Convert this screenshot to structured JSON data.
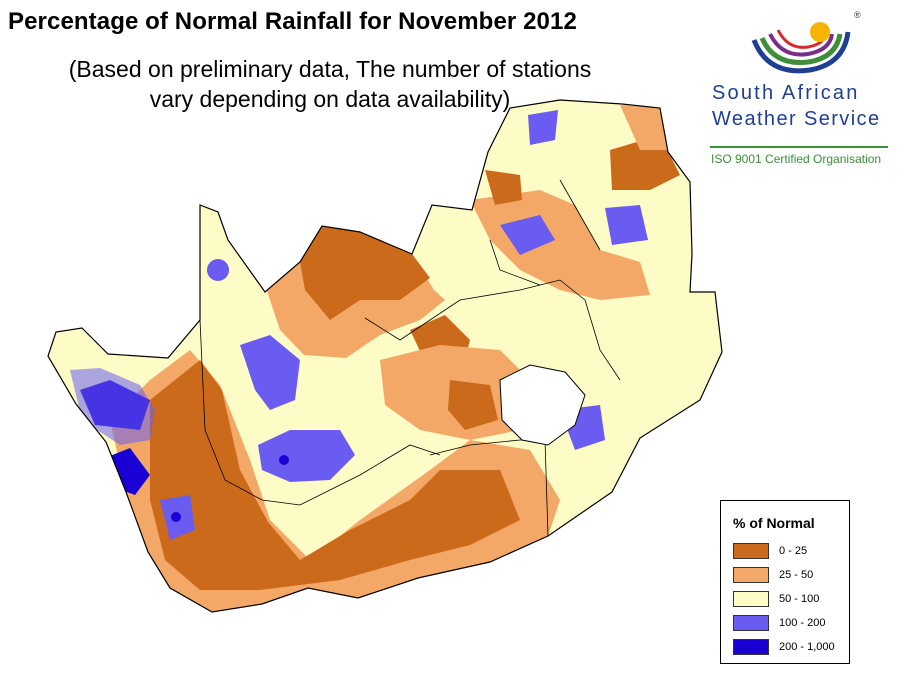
{
  "title": "Percentage of Normal Rainfall for November 2012",
  "subtitle_line1": "(Based on preliminary data, The number of stations",
  "subtitle_line2": "vary depending on data availability)",
  "logo": {
    "line1": "South African",
    "line2": "Weather Service",
    "tagline": "ISO 9001 Certified Organisation",
    "registered_mark": "®"
  },
  "legend": {
    "title": "% of Normal",
    "classes": [
      {
        "label": "0 - 25",
        "color": "#cc6a1c"
      },
      {
        "label": "25 - 50",
        "color": "#f4a868"
      },
      {
        "label": "50 - 100",
        "color": "#fdfbc6"
      },
      {
        "label": "100 - 200",
        "color": "#6a5cf0"
      },
      {
        "label": "200 - 1,000",
        "color": "#1a00d4"
      }
    ]
  },
  "colors": {
    "boundary": "#000000",
    "lesotho": "#ffffff"
  }
}
